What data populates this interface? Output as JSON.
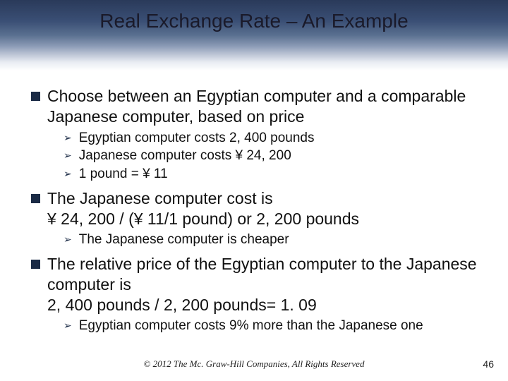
{
  "title": "Real Exchange Rate – An Example",
  "bullets": [
    {
      "text": "Choose between an Egyptian computer and a comparable Japanese computer, based on price",
      "sub": [
        "Egyptian computer costs 2, 400 pounds",
        "Japanese computer costs ¥ 24, 200",
        "1 pound = ¥ 11"
      ]
    },
    {
      "text": "The Japanese computer cost  is\n¥ 24, 200 / (¥ 11/1 pound) or 2, 200 pounds",
      "sub": [
        "The Japanese computer is cheaper"
      ]
    },
    {
      "text": "The relative price of the Egyptian computer to the Japanese computer is\n2, 400 pounds / 2, 200 pounds= 1. 09",
      "sub": [
        "Egyptian computer costs 9% more than the Japanese one"
      ]
    }
  ],
  "footer": "© 2012 The Mc. Graw-Hill Companies, All Rights Reserved",
  "page": "46",
  "colors": {
    "square_bullet": "#1a2a45",
    "arrow_bullet": "#1a2a45",
    "text": "#111111",
    "background": "#ffffff"
  }
}
